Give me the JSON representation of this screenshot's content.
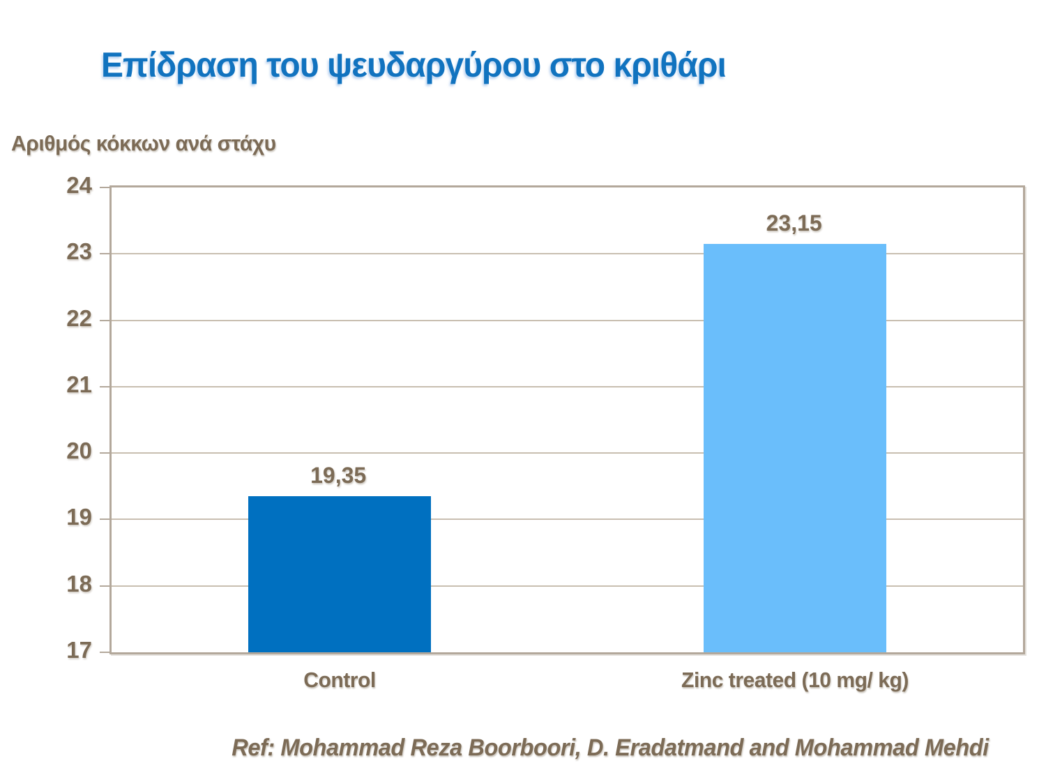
{
  "title": "Επίδραση του ψευδαργύρου στο κριθάρι",
  "chart_data": {
    "type": "bar",
    "title": "Επίδραση του ψευδαργύρου στο κριθάρι",
    "ylabel": "Αριθμός κόκκων ανά στάχυ",
    "xlabel": "",
    "categories": [
      "Control",
      "Zinc treated (10 mg/ kg)"
    ],
    "values": [
      19.35,
      23.15
    ],
    "value_labels": [
      "19,35",
      "23,15"
    ],
    "ylim": [
      17,
      24
    ],
    "yticks": [
      24,
      23,
      22,
      21,
      20,
      19,
      18,
      17
    ],
    "grid": true,
    "legend": false,
    "bar_colors": [
      "#0070C0",
      "#6ABEFB"
    ]
  },
  "footer": {
    "reference": "Ref: Mohammad Reza Boorboori, D. Eradatmand and Mohammad Mehdi"
  },
  "colors": {
    "title_blue": "#1173BF",
    "text_brown": "#7C6B56",
    "plot_frame": "#B3A89B",
    "gridline": "#C8BEB0",
    "bar_control": "#0070C0",
    "bar_zinc_treated": "#6ABEFB",
    "background": "#FFFFFF"
  }
}
